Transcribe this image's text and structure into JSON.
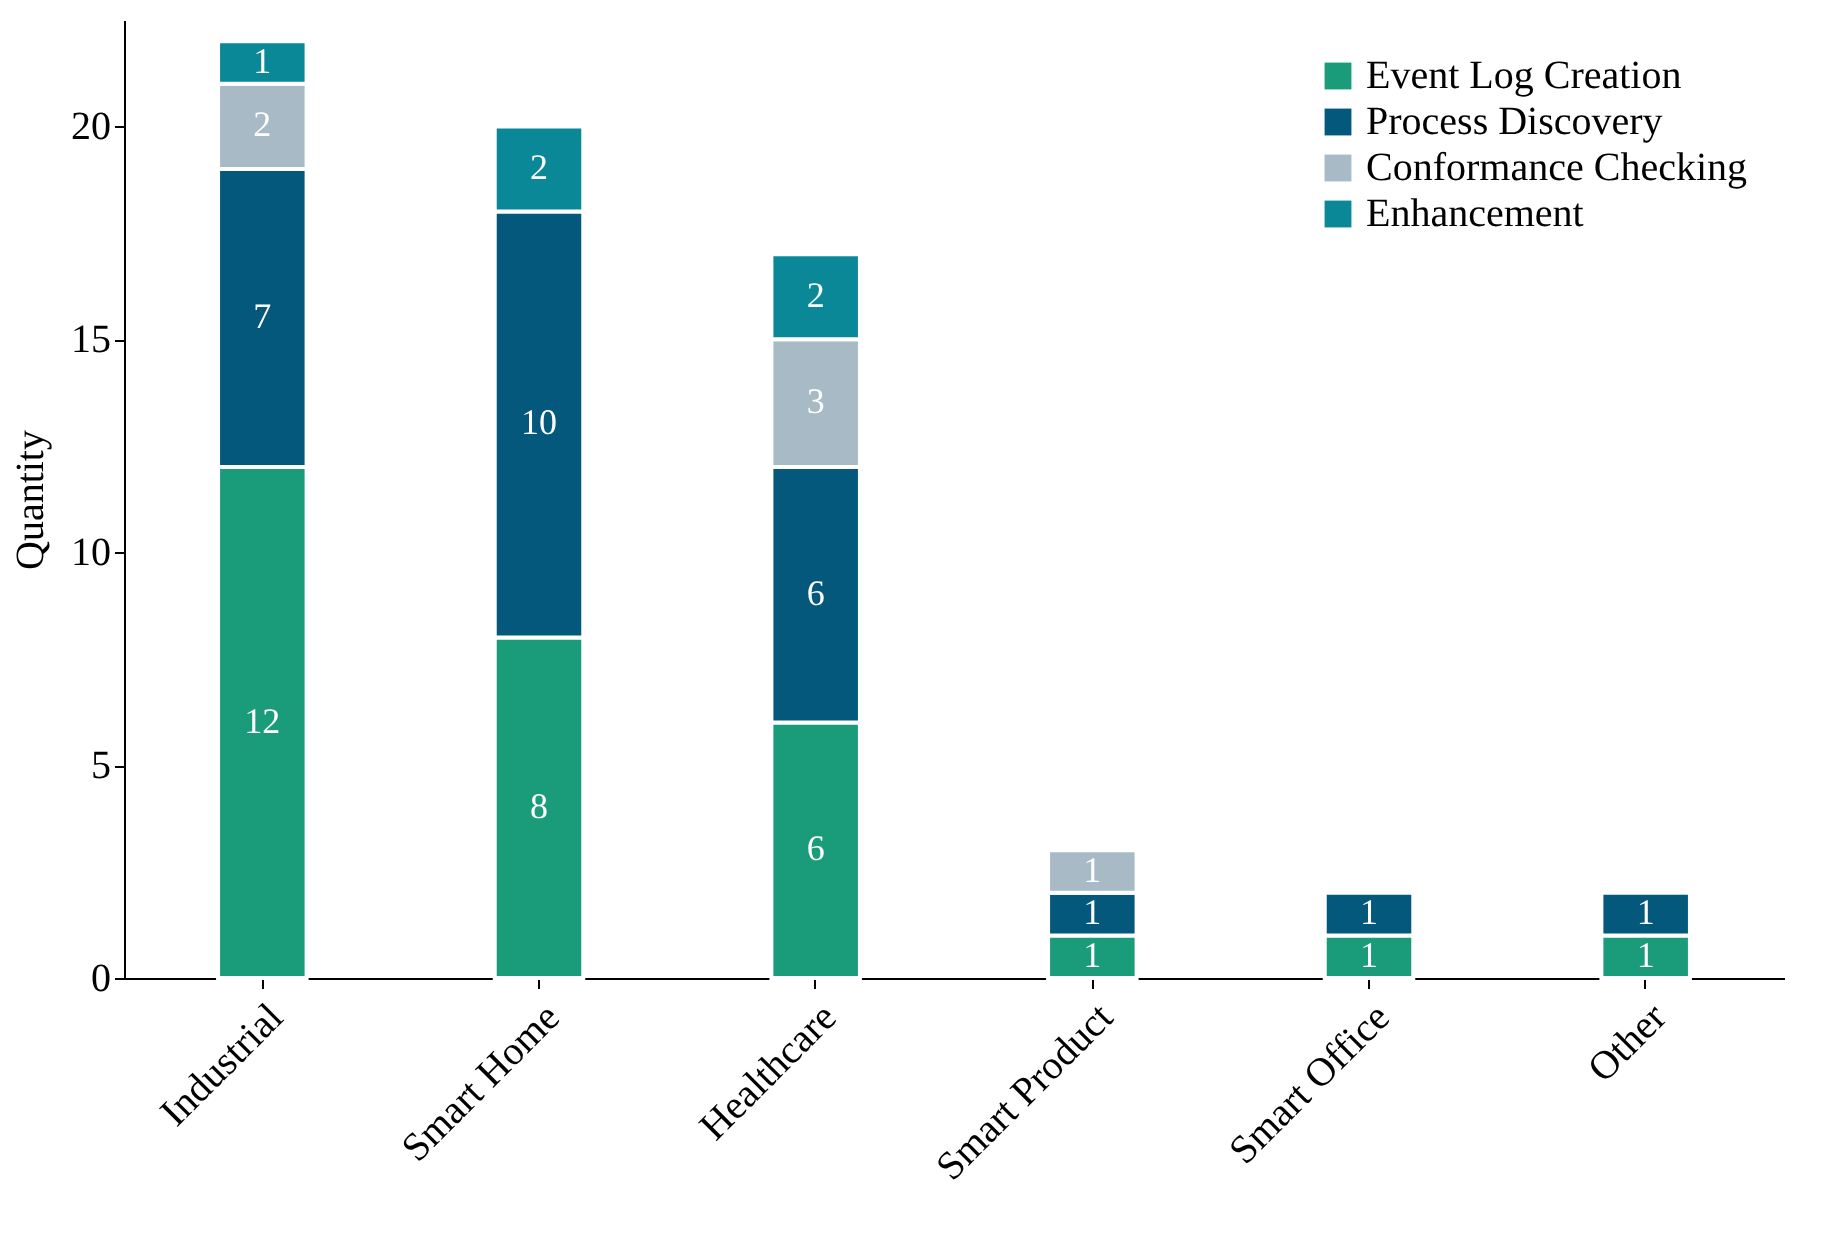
{
  "chart_data": {
    "type": "bar",
    "stacked": true,
    "ylabel": "Quantity",
    "categories": [
      "Industrial",
      "Smart Home",
      "Healthcare",
      "Smart Product",
      "Smart Office",
      "Other"
    ],
    "series": [
      {
        "name": "Event Log Creation",
        "color": "#1a9c7b",
        "values": [
          12,
          8,
          6,
          1,
          1,
          1
        ]
      },
      {
        "name": "Process Discovery",
        "color": "#03587c",
        "values": [
          7,
          10,
          6,
          1,
          1,
          1
        ]
      },
      {
        "name": "Conformance Checking",
        "color": "#a7bac6",
        "values": [
          2,
          null,
          3,
          1,
          null,
          null
        ]
      },
      {
        "name": "Enhancement",
        "color": "#0b8898",
        "values": [
          1,
          2,
          2,
          null,
          null,
          null
        ]
      }
    ],
    "ylim": [
      0,
      22.5
    ],
    "yticks": [
      0,
      5,
      10,
      15,
      20
    ],
    "grid": false,
    "legend": "top right",
    "data_labels": true
  }
}
